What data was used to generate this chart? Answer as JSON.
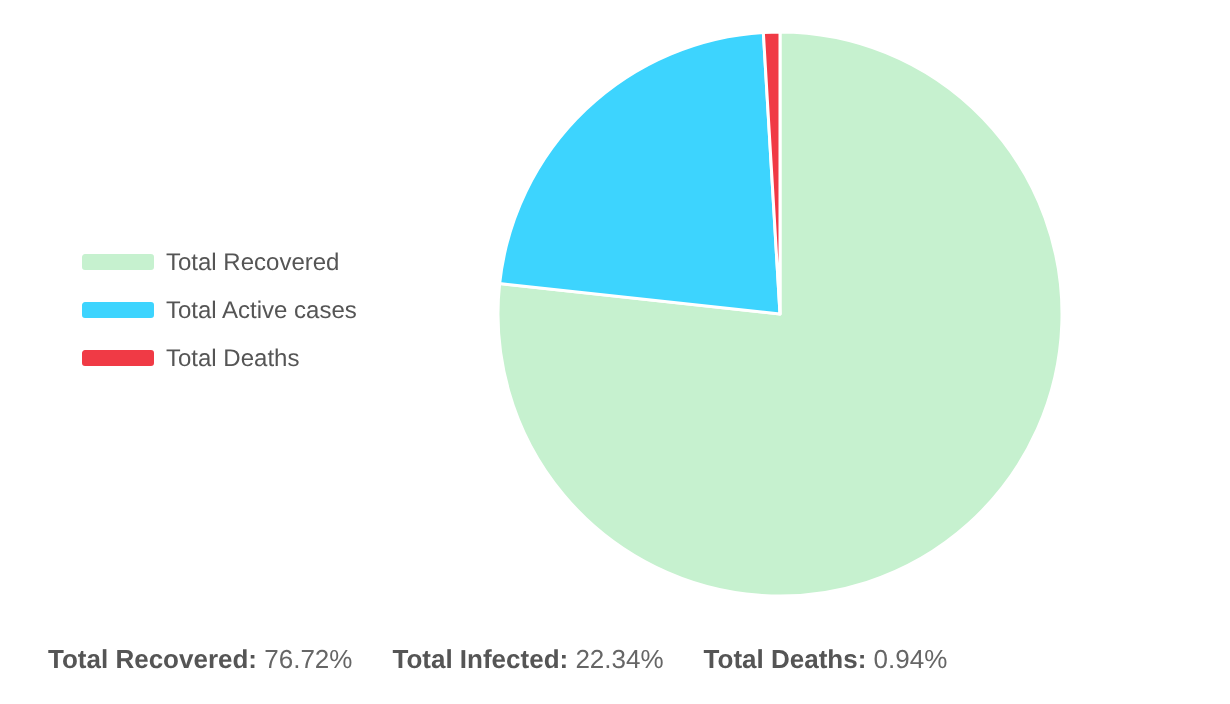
{
  "chart_data": {
    "type": "pie",
    "categories": [
      "Total Recovered",
      "Total Active cases",
      "Total Deaths"
    ],
    "values": [
      76.72,
      22.34,
      0.94
    ],
    "colors": [
      "#c6f1cf",
      "#3dd4fe",
      "#f03a45"
    ],
    "legend": "left",
    "annotations": [
      "Total Recovered: 76.72%",
      "Total Infected: 22.34%",
      "Total Deaths: 0.94%"
    ]
  }
}
